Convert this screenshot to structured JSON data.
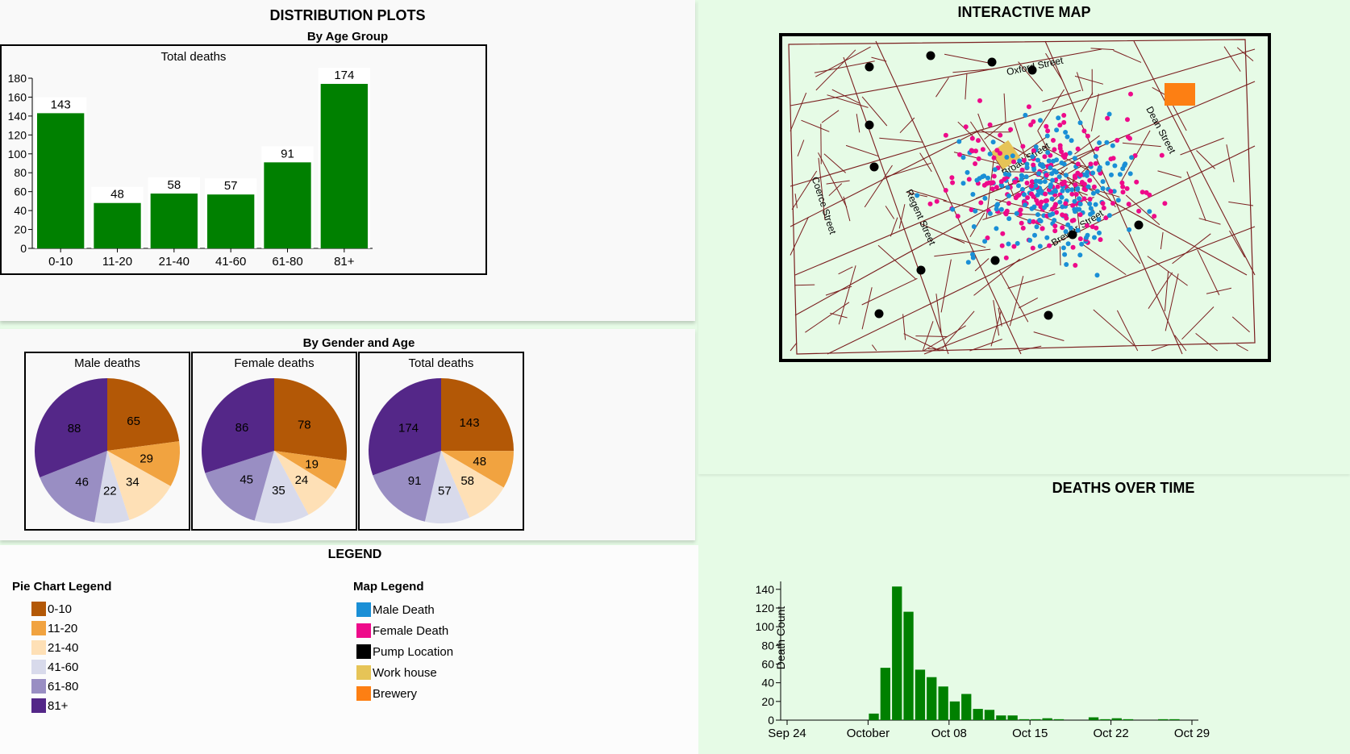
{
  "distribution": {
    "title": "DISTRIBUTION PLOTS",
    "age_subtitle": "By Age Group",
    "gender_subtitle": "By Gender and Age"
  },
  "map": {
    "title": "INTERACTIVE MAP",
    "streets": [
      "Oxford Street",
      "Dean Street",
      "Broad Street",
      "Coerce Street",
      "Regent Street",
      "Brewer Street"
    ]
  },
  "time": {
    "title": "DEATHS OVER TIME"
  },
  "legend": {
    "title": "LEGEND",
    "pie_title": "Pie Chart Legend",
    "map_title": "Map Legend",
    "pie_items": [
      {
        "label": "0-10",
        "color": "#b35806"
      },
      {
        "label": "11-20",
        "color": "#f1a340"
      },
      {
        "label": "21-40",
        "color": "#fee0b6"
      },
      {
        "label": "41-60",
        "color": "#d8daeb"
      },
      {
        "label": "61-80",
        "color": "#998ec3"
      },
      {
        "label": "81+",
        "color": "#542788"
      }
    ],
    "map_items": [
      {
        "label": "Male Death",
        "color": "#1a8fd6"
      },
      {
        "label": "Female Death",
        "color": "#ee0a8a"
      },
      {
        "label": "Pump Location",
        "color": "#000000"
      },
      {
        "label": "Work house",
        "color": "#e6c457"
      },
      {
        "label": "Brewery",
        "color": "#fd7f13"
      }
    ]
  },
  "chart_data": [
    {
      "type": "bar",
      "title": "Total deaths",
      "categories": [
        "0-10",
        "11-20",
        "21-40",
        "41-60",
        "61-80",
        "81+"
      ],
      "values": [
        143,
        48,
        58,
        57,
        91,
        174
      ],
      "yticks": [
        0,
        20,
        40,
        60,
        80,
        100,
        120,
        140,
        160,
        180
      ],
      "ylim": [
        0,
        180
      ],
      "color": "#008000"
    },
    {
      "type": "pie",
      "title": "Male deaths",
      "categories": [
        "0-10",
        "11-20",
        "21-40",
        "41-60",
        "61-80",
        "81+"
      ],
      "values": [
        65,
        29,
        34,
        22,
        46,
        88
      ]
    },
    {
      "type": "pie",
      "title": "Female deaths",
      "categories": [
        "0-10",
        "11-20",
        "21-40",
        "41-60",
        "61-80",
        "81+"
      ],
      "values": [
        78,
        19,
        24,
        35,
        45,
        86
      ]
    },
    {
      "type": "pie",
      "title": "Total deaths",
      "categories": [
        "0-10",
        "11-20",
        "21-40",
        "41-60",
        "61-80",
        "81+"
      ],
      "values": [
        143,
        48,
        58,
        57,
        91,
        174
      ]
    },
    {
      "type": "bar",
      "title": "DEATHS OVER TIME",
      "ylabel": "Death Count",
      "x_tick_labels": [
        "Sep 24",
        "October",
        "Oct 08",
        "Oct 15",
        "Oct 22",
        "Oct 29"
      ],
      "x_tick_dates": [
        "1854-09-24",
        "1854-10-01",
        "1854-10-08",
        "1854-10-15",
        "1854-10-22",
        "1854-10-29"
      ],
      "yticks": [
        0,
        20,
        40,
        60,
        80,
        100,
        120,
        140
      ],
      "ylim": [
        0,
        145
      ],
      "x": [
        "1854-10-01",
        "1854-10-02",
        "1854-10-03",
        "1854-10-04",
        "1854-10-05",
        "1854-10-06",
        "1854-10-07",
        "1854-10-08",
        "1854-10-09",
        "1854-10-10",
        "1854-10-11",
        "1854-10-12",
        "1854-10-13",
        "1854-10-14",
        "1854-10-15",
        "1854-10-16",
        "1854-10-17",
        "1854-10-18",
        "1854-10-19",
        "1854-10-20",
        "1854-10-21",
        "1854-10-22",
        "1854-10-23",
        "1854-10-24",
        "1854-10-25",
        "1854-10-26",
        "1854-10-27",
        "1854-10-28",
        "1854-10-29"
      ],
      "values": [
        7,
        56,
        143,
        116,
        54,
        46,
        36,
        20,
        28,
        12,
        11,
        5,
        5,
        1,
        1,
        2,
        1,
        0,
        0,
        3,
        1,
        2,
        1,
        0,
        0,
        1,
        1,
        0,
        0
      ],
      "color": "#008000"
    }
  ]
}
